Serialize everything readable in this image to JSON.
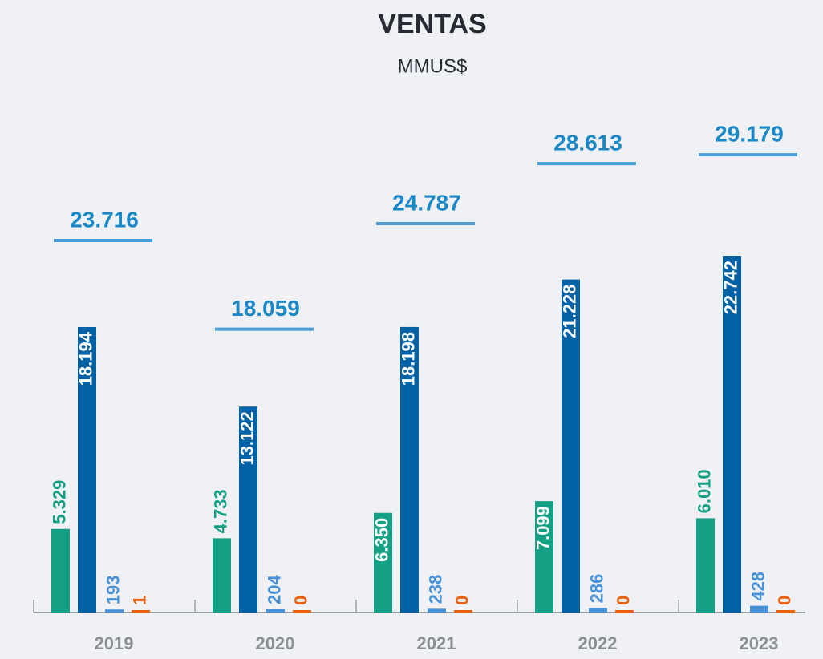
{
  "chart_data": {
    "type": "bar",
    "title": "VENTAS",
    "subtitle": "MMUS$",
    "categories": [
      "2019",
      "2020",
      "2021",
      "2022",
      "2023"
    ],
    "ylim": [
      0,
      30000
    ],
    "series": [
      {
        "color": "#13a084",
        "values": [
          5329,
          4733,
          6350,
          7099,
          6010
        ],
        "value_labels": [
          "5.329",
          "4.733",
          "6.350",
          "7.099",
          "6.010"
        ]
      },
      {
        "color": "#0061a5",
        "values": [
          18194,
          13122,
          18198,
          21228,
          22742
        ],
        "value_labels": [
          "18.194",
          "13.122",
          "18.198",
          "21.228",
          "22.742"
        ]
      },
      {
        "color": "#4a92d8",
        "values": [
          193,
          204,
          238,
          286,
          428
        ],
        "value_labels": [
          "193",
          "204",
          "238",
          "286",
          "428"
        ]
      },
      {
        "color": "#e8620f",
        "values": [
          1,
          0,
          0,
          0,
          0
        ],
        "value_labels": [
          "1",
          "0",
          "0",
          "0",
          "0"
        ]
      }
    ],
    "totals": {
      "color": "#4a9fd8",
      "label_color": "#1a88c6",
      "values": [
        23716,
        18059,
        24787,
        28613,
        29179
      ],
      "value_labels": [
        "23.716",
        "18.059",
        "24.787",
        "28.613",
        "29.179"
      ]
    }
  }
}
